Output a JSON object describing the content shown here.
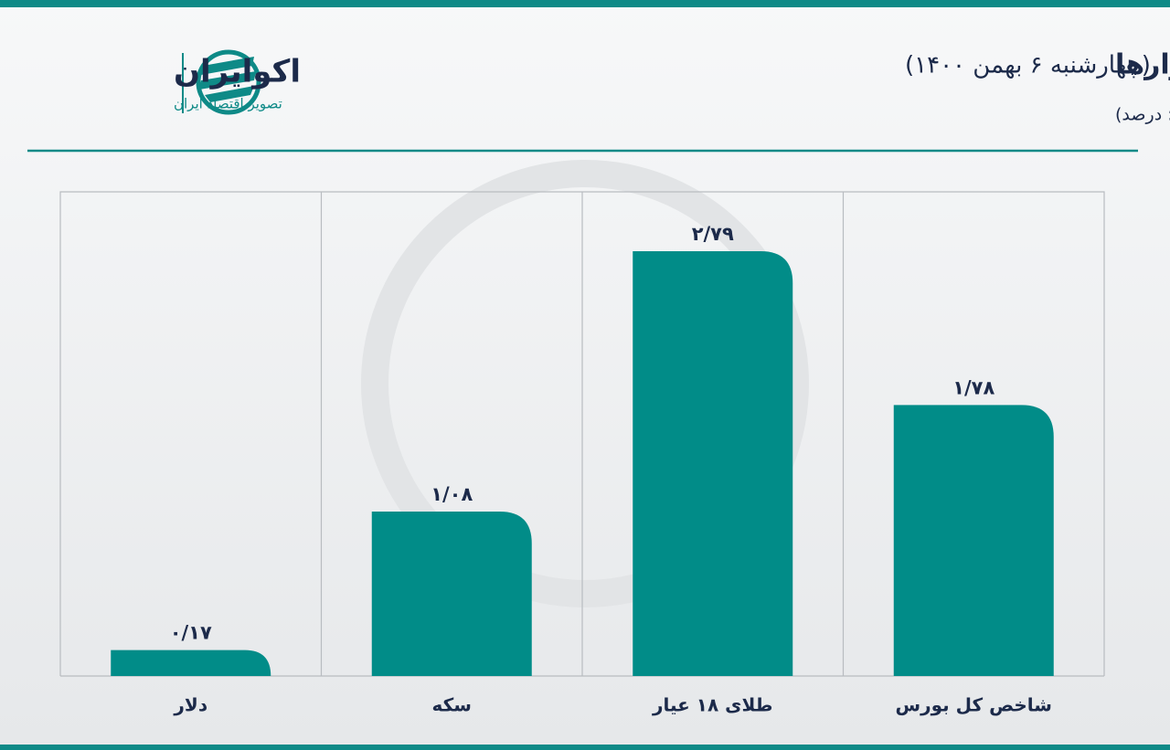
{
  "brand": {
    "name": "اکوایران",
    "tagline": "تصویر اقتصاد ایران"
  },
  "chart_data": {
    "type": "bar",
    "title": "بازدهی بازارها",
    "subtitle": "(چهارشنبه ۶ بهمن ۱۴۰۰)",
    "unit": "(واحد: درصد)",
    "categories": [
      "دلار",
      "سکه",
      "طلای ۱۸ عیار",
      "شاخص کل بورس"
    ],
    "values": [
      0.17,
      1.08,
      2.79,
      1.78
    ],
    "value_labels": [
      "۰/۱۷",
      "۱/۰۸",
      "۲/۷۹",
      "۱/۷۸"
    ],
    "color": "#018c88",
    "ylim": [
      0,
      3.18
    ]
  }
}
